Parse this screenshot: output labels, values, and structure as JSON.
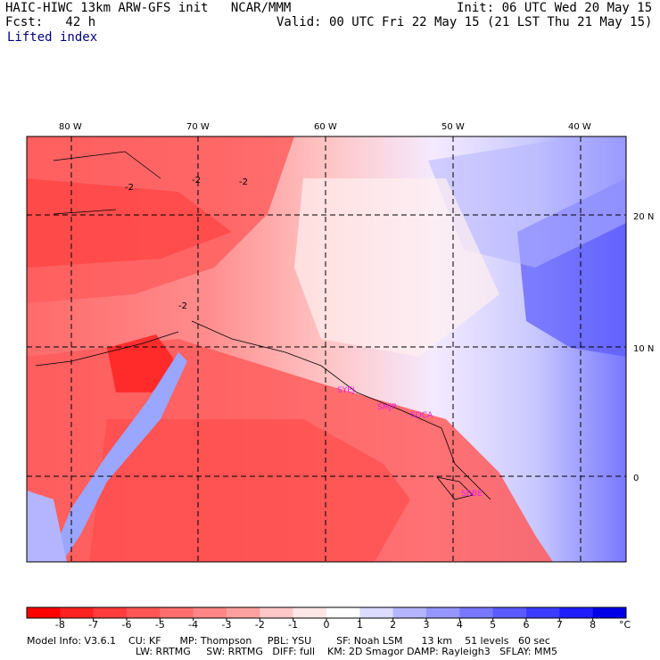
{
  "header": {
    "title_left": "HAIC-HIWC 13km ARW-GFS init   NCAR/MMM",
    "init": "Init: 06 UTC Wed 20 May 15",
    "fcst": "Fcst:   42 h",
    "valid": "Valid: 00 UTC Fri 22 May 15 (21 LST Thu 21 May 15)",
    "field": "Lifted index"
  },
  "map": {
    "lon_labels": [
      "80 W",
      "70 W",
      "60 W",
      "50 W",
      "40 W"
    ],
    "lat_labels": [
      "20 N",
      "10 N",
      "0"
    ],
    "contour_label": "-2",
    "stations": [
      "SYEJ",
      "SMJP",
      "SOCA",
      "SBBE"
    ]
  },
  "colorbar": {
    "labels": [
      "-8",
      "-7",
      "-6",
      "-5",
      "-4",
      "-3",
      "-2",
      "-1",
      "0",
      "1",
      "2",
      "3",
      "4",
      "5",
      "6",
      "7",
      "8"
    ],
    "unit": "°C",
    "colors": [
      "#ff0000",
      "#ff2222",
      "#ff3c3c",
      "#ff5555",
      "#ff6e6e",
      "#ff8787",
      "#ffa0a0",
      "#ffc8c8",
      "#ffe6e6",
      "#ffffff",
      "#dcdcff",
      "#b4b4ff",
      "#9696ff",
      "#7878ff",
      "#5a5aff",
      "#3c3cff",
      "#1e1eff",
      "#0000e6"
    ]
  },
  "model_info": {
    "line1": "Model Info: V3.6.1    CU: KF      MP: Thompson     PBL: YSU        SF: Noah LSM      13 km    51 levels   60 sec",
    "line2": "LW: RRTMG     SW: RRTMG   DIFF: full    KM: 2D Smagor DAMP: Rayleigh3   SFLAY: MM5"
  }
}
